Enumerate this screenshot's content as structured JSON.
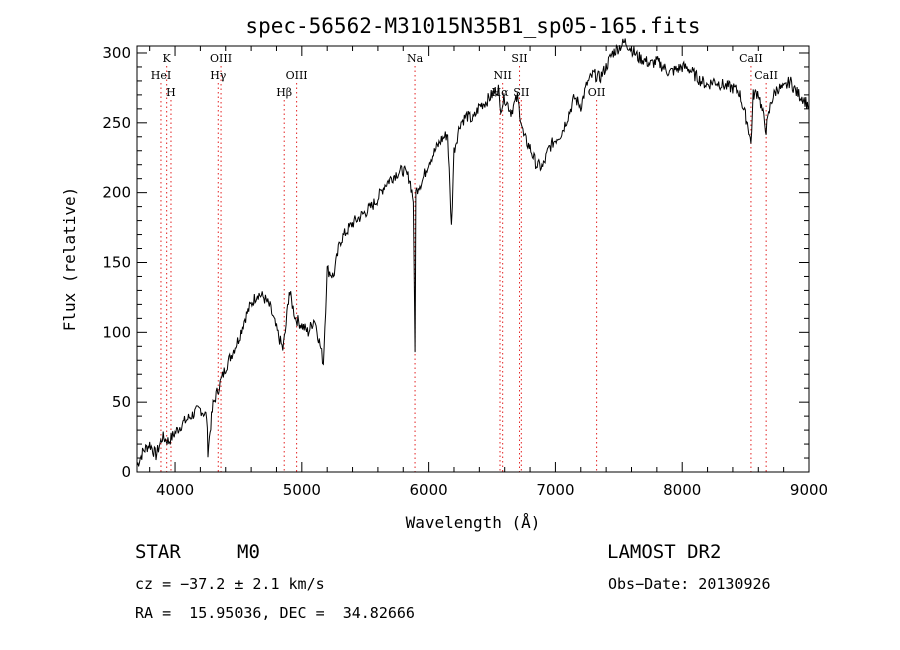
{
  "chart_data": {
    "type": "line",
    "title": "spec-56562-M31015N35B1_sp05-165.fits",
    "xlabel": "Wavelength (Å)",
    "ylabel": "Flux (relative)",
    "xlim": [
      3700,
      9000
    ],
    "ylim": [
      0,
      305
    ],
    "xticks": [
      4000,
      5000,
      6000,
      7000,
      8000,
      9000
    ],
    "yticks": [
      0,
      50,
      100,
      150,
      200,
      250,
      300
    ],
    "grid": false,
    "series": [
      {
        "x": [
          3700,
          3750,
          3800,
          3850,
          3900,
          3950,
          4000,
          4050,
          4100,
          4150,
          4200,
          4250,
          4260,
          4300,
          4350,
          4400,
          4450,
          4500,
          4550,
          4600,
          4650,
          4700,
          4750,
          4800,
          4850,
          4870,
          4900,
          4950,
          5000,
          5050,
          5100,
          5150,
          5170,
          5200,
          5250,
          5300,
          5350,
          5400,
          5450,
          5500,
          5550,
          5600,
          5650,
          5700,
          5750,
          5800,
          5850,
          5880,
          5893,
          5900,
          5920,
          5950,
          6000,
          6050,
          6100,
          6150,
          6180,
          6200,
          6250,
          6300,
          6350,
          6400,
          6450,
          6500,
          6550,
          6563,
          6600,
          6650,
          6700,
          6750,
          6800,
          6850,
          6900,
          6950,
          7000,
          7050,
          7100,
          7150,
          7200,
          7250,
          7300,
          7350,
          7400,
          7450,
          7500,
          7550,
          7600,
          7650,
          7700,
          7750,
          7800,
          7850,
          7900,
          7950,
          8000,
          8050,
          8100,
          8150,
          8200,
          8250,
          8300,
          8350,
          8400,
          8450,
          8498,
          8520,
          8542,
          8560,
          8600,
          8662,
          8700,
          8750,
          8800,
          8850,
          8900,
          8950,
          9000
        ],
        "values": [
          5,
          15,
          20,
          12,
          25,
          22,
          28,
          34,
          38,
          42,
          45,
          40,
          15,
          48,
          62,
          75,
          85,
          95,
          110,
          120,
          128,
          125,
          118,
          102,
          88,
          100,
          130,
          110,
          105,
          100,
          110,
          88,
          78,
          145,
          140,
          165,
          172,
          178,
          182,
          186,
          190,
          196,
          205,
          210,
          214,
          216,
          210,
          195,
          85,
          200,
          205,
          208,
          222,
          230,
          238,
          242,
          175,
          230,
          250,
          255,
          252,
          262,
          265,
          270,
          275,
          260,
          268,
          258,
          268,
          240,
          232,
          220,
          218,
          232,
          238,
          243,
          255,
          268,
          262,
          278,
          285,
          282,
          290,
          300,
          304,
          308,
          303,
          297,
          295,
          292,
          294,
          290,
          286,
          288,
          290,
          289,
          284,
          280,
          277,
          280,
          278,
          276,
          275,
          272,
          255,
          248,
          235,
          270,
          272,
          245,
          265,
          275,
          274,
          280,
          272,
          268,
          262
        ]
      }
    ],
    "spectral_lines": [
      {
        "label": "K",
        "x": 3934,
        "row": 1
      },
      {
        "label": "HeI",
        "x": 3889,
        "row": 2
      },
      {
        "label": "H",
        "x": 3968,
        "row": 3
      },
      {
        "label": "OIII",
        "x": 4363,
        "row": 1
      },
      {
        "label": "Hγ",
        "x": 4341,
        "row": 2
      },
      {
        "label": "OIII",
        "x": 4959,
        "row": 2
      },
      {
        "label": "Hβ",
        "x": 4861,
        "row": 3
      },
      {
        "label": "Na",
        "x": 5893,
        "row": 1
      },
      {
        "label": "SII",
        "x": 6717,
        "row": 1
      },
      {
        "label": "NII",
        "x": 6584,
        "row": 2
      },
      {
        "label": "Hα",
        "x": 6563,
        "row": 3
      },
      {
        "label": "SII",
        "x": 6731,
        "row": 3
      },
      {
        "label": "OII",
        "x": 7325,
        "row": 3
      },
      {
        "label": "CaII",
        "x": 8542,
        "row": 1
      },
      {
        "label": "CaII",
        "x": 8662,
        "row": 2
      }
    ]
  },
  "info": {
    "object_class": "STAR",
    "subclass": "M0",
    "survey": "LAMOST DR2",
    "cz": "cz = −37.2 ± 2.1 km/s",
    "obs_date": "Obs−Date: 20130926",
    "coords": "RA =  15.95036, DEC =  34.82666"
  },
  "colors": {
    "line_marker": "#e32020",
    "spectrum": "#000000"
  }
}
